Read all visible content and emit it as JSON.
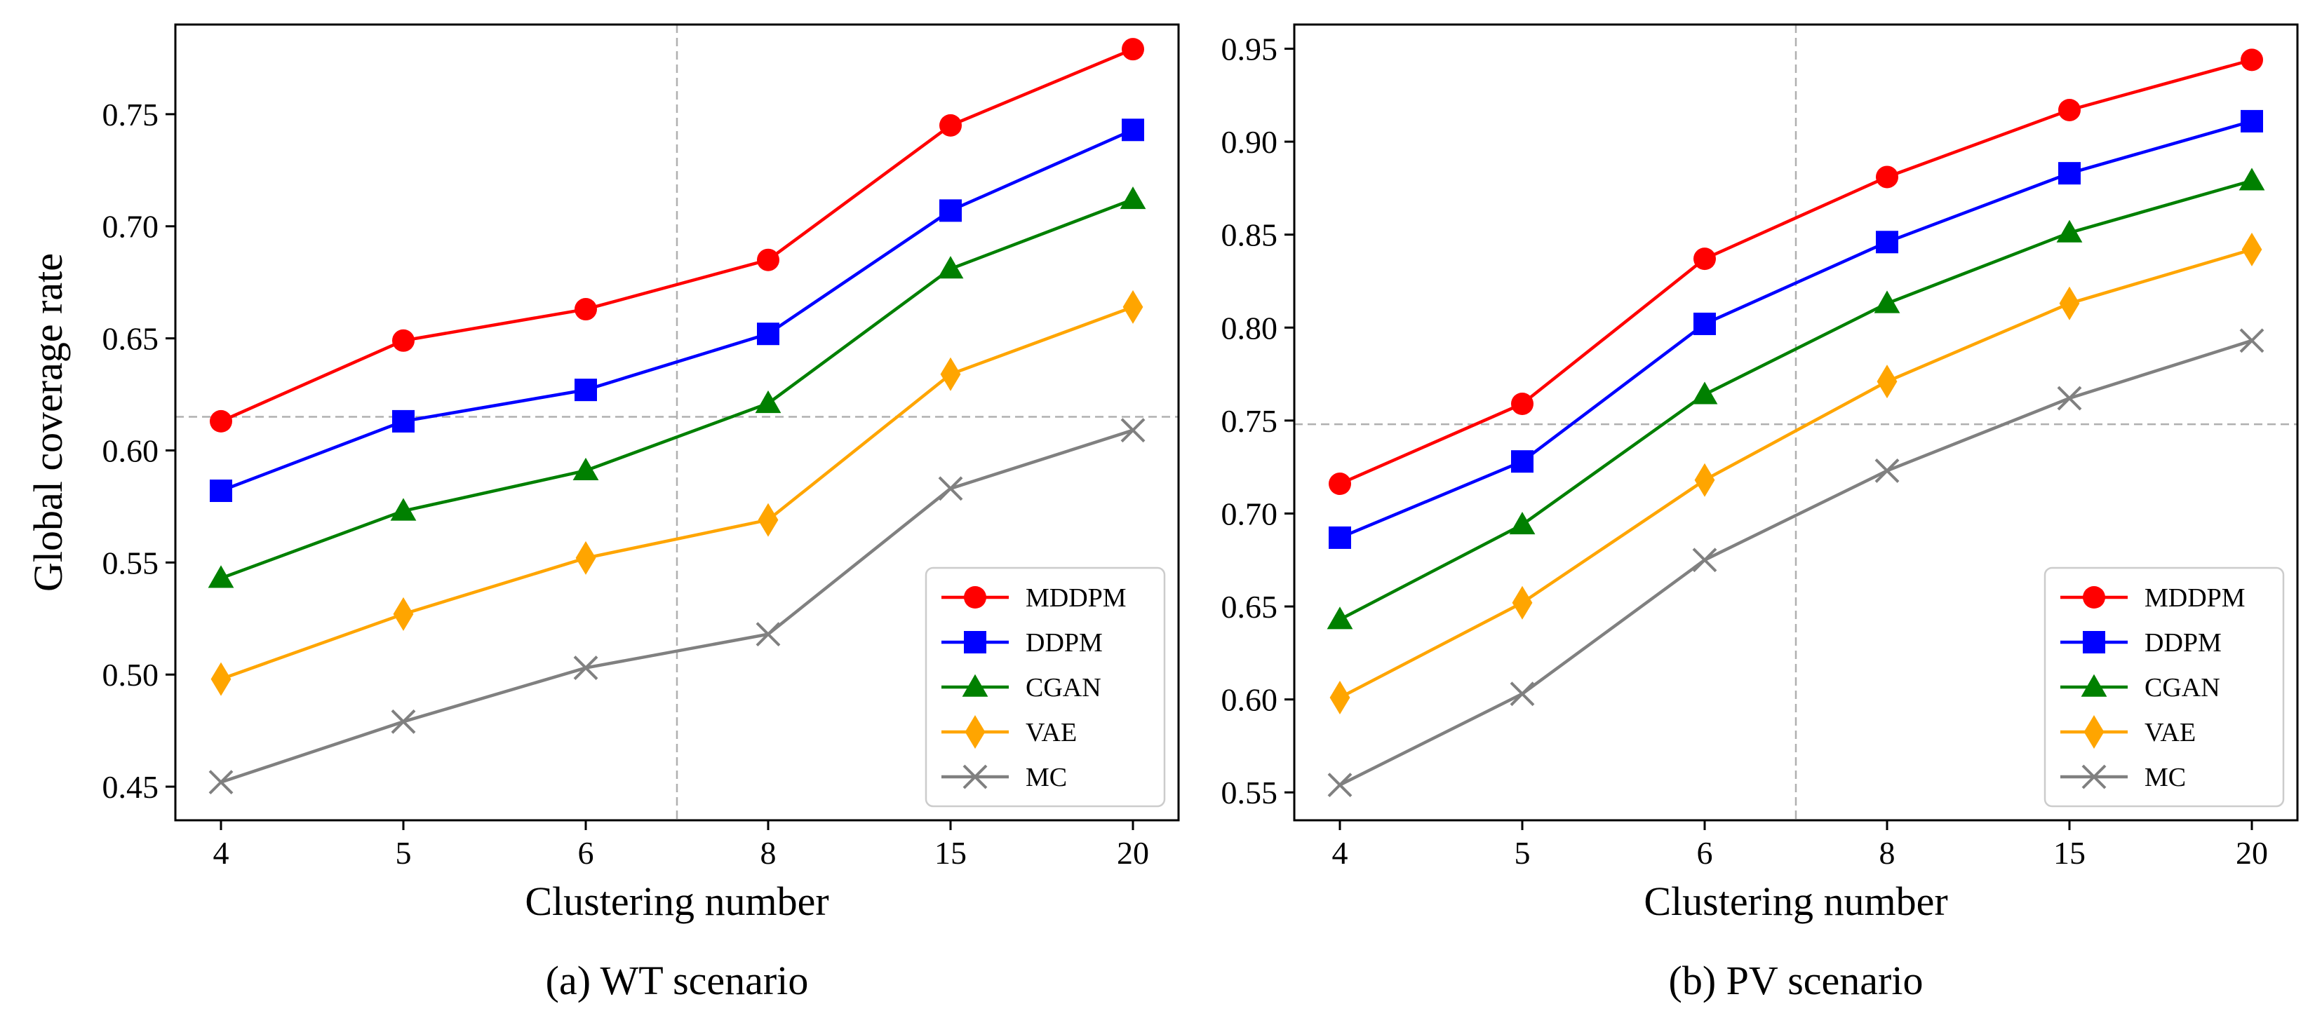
{
  "chart_data": [
    {
      "type": "line",
      "caption": "(a) WT scenario",
      "xlabel": "Clustering number",
      "ylabel": "Global coverage rate",
      "categories": [
        "4",
        "5",
        "6",
        "8",
        "15",
        "20"
      ],
      "ylim": [
        0.435,
        0.79
      ],
      "yticks": [
        0.45,
        0.5,
        0.55,
        0.6,
        0.65,
        0.7,
        0.75
      ],
      "ytick_labels": [
        "0.45",
        "0.50",
        "0.55",
        "0.60",
        "0.65",
        "0.70",
        "0.75"
      ],
      "ref_x": 2.5,
      "ref_y": 0.615,
      "legend_position": "lower-right",
      "series": [
        {
          "name": "MDDPM",
          "color": "#ff0000",
          "marker": "circle",
          "values": [
            0.613,
            0.649,
            0.663,
            0.685,
            0.745,
            0.779
          ]
        },
        {
          "name": "DDPM",
          "color": "#0000ff",
          "marker": "square",
          "values": [
            0.582,
            0.613,
            0.627,
            0.652,
            0.707,
            0.743
          ]
        },
        {
          "name": "CGAN",
          "color": "#008000",
          "marker": "triangle",
          "values": [
            0.543,
            0.573,
            0.591,
            0.621,
            0.681,
            0.712
          ]
        },
        {
          "name": "VAE",
          "color": "#ffa500",
          "marker": "diamond",
          "values": [
            0.498,
            0.527,
            0.552,
            0.569,
            0.634,
            0.664
          ]
        },
        {
          "name": "MC",
          "color": "#808080",
          "marker": "x",
          "values": [
            0.452,
            0.479,
            0.503,
            0.518,
            0.583,
            0.609
          ]
        }
      ]
    },
    {
      "type": "line",
      "caption": "(b) PV scenario",
      "xlabel": "Clustering number",
      "ylabel": "",
      "categories": [
        "4",
        "5",
        "6",
        "8",
        "15",
        "20"
      ],
      "ylim": [
        0.535,
        0.963
      ],
      "yticks": [
        0.55,
        0.6,
        0.65,
        0.7,
        0.75,
        0.8,
        0.85,
        0.9,
        0.95
      ],
      "ytick_labels": [
        "0.55",
        "0.60",
        "0.65",
        "0.70",
        "0.75",
        "0.80",
        "0.85",
        "0.90",
        "0.95"
      ],
      "ref_x": 2.5,
      "ref_y": 0.748,
      "legend_position": "lower-right",
      "series": [
        {
          "name": "MDDPM",
          "color": "#ff0000",
          "marker": "circle",
          "values": [
            0.716,
            0.759,
            0.837,
            0.881,
            0.917,
            0.944
          ]
        },
        {
          "name": "DDPM",
          "color": "#0000ff",
          "marker": "square",
          "values": [
            0.687,
            0.728,
            0.802,
            0.846,
            0.883,
            0.911
          ]
        },
        {
          "name": "CGAN",
          "color": "#008000",
          "marker": "triangle",
          "values": [
            0.643,
            0.694,
            0.764,
            0.813,
            0.851,
            0.879
          ]
        },
        {
          "name": "VAE",
          "color": "#ffa500",
          "marker": "diamond",
          "values": [
            0.601,
            0.652,
            0.718,
            0.771,
            0.813,
            0.842
          ]
        },
        {
          "name": "MC",
          "color": "#808080",
          "marker": "x",
          "values": [
            0.554,
            0.603,
            0.675,
            0.723,
            0.762,
            0.793
          ]
        }
      ]
    }
  ]
}
